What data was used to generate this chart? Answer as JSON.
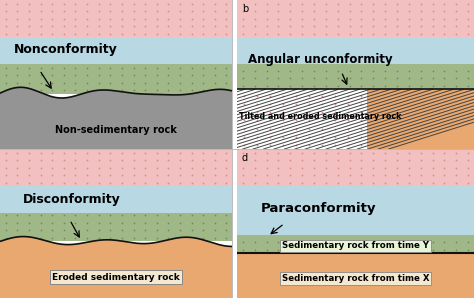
{
  "nonconformity_title": "Nonconformity",
  "nonconformity_sublabel": "Non-sedimentary rock",
  "angular_title": "Angular unconformity",
  "angular_sublabel": "Tilted and eroded sedimentary rock",
  "disconformity_title": "Disconformity",
  "disconformity_sublabel": "Eroded sedimentary rock",
  "paraconformity_title": "Paraconformity",
  "para_label1": "Sedimentary rock from time Y",
  "para_label2": "Sedimentary rock from time X",
  "label_b": "b",
  "label_d": "d",
  "color_pink": "#f2c0c0",
  "color_blue": "#b8d8e4",
  "color_green": "#a0b888",
  "color_gray": "#949494",
  "color_orange": "#e8a870",
  "color_tan": "#c8b090",
  "bg_color": "#ffffff",
  "line_color": "#111111",
  "dot_pink": "#d89090",
  "dot_green": "#708858"
}
